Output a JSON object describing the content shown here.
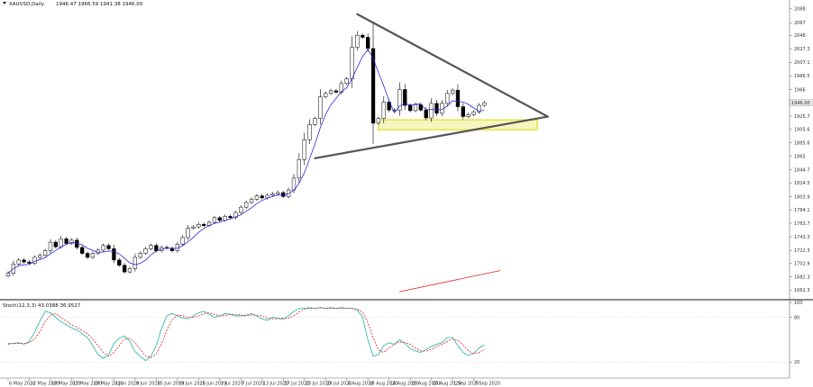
{
  "window": {
    "title": "XAUUSD,Daily",
    "ohlc": "1946.47 1966.59 1941.38 1946.00"
  },
  "colors": {
    "background": "#ffffff",
    "candle_up_fill": "#ffffff",
    "candle_down_fill": "#000000",
    "candle_outline": "#000000",
    "moving_average": "#2b2bd6",
    "trendline": "#555555",
    "support_zone": "#e6e64d",
    "red_line": "#e02020",
    "stoch_main": "#20b2aa",
    "stoch_signal": "#e02020",
    "price_tag_bg": "#e8e8e8"
  },
  "chart_data": [
    {
      "type": "candlestick",
      "symbol": "XAUUSD",
      "timeframe": "Daily",
      "current_price": 1946.0,
      "price_tag": "1946.00",
      "y_ticks": [
        1662.3,
        1682.3,
        1702.9,
        1722.3,
        1743.3,
        1763.7,
        1784.1,
        1803.9,
        1824.5,
        1844.7,
        1865.0,
        1885.6,
        1905.6,
        1925.7,
        1966.0,
        1986.5,
        2007.1,
        2027.3,
        2048.0,
        2067.0,
        2088.0
      ],
      "y_range": [
        1652,
        2096
      ],
      "x_labels": [
        {
          "bar": 0,
          "label": "6 May 2020"
        },
        {
          "bar": 4,
          "label": "12 May 2020"
        },
        {
          "bar": 8,
          "label": "18 May 2020"
        },
        {
          "bar": 12,
          "label": "22 May 2020"
        },
        {
          "bar": 16,
          "label": "28 May 2020"
        },
        {
          "bar": 20,
          "label": "3 Jun 2020"
        },
        {
          "bar": 24,
          "label": "9 Jun 2020"
        },
        {
          "bar": 28,
          "label": "15 Jun 2020"
        },
        {
          "bar": 32,
          "label": "19 Jun 2020"
        },
        {
          "bar": 36,
          "label": "25 Jun 2020"
        },
        {
          "bar": 40,
          "label": "1 Jul 2020"
        },
        {
          "bar": 44,
          "label": "7 Jul 2020"
        },
        {
          "bar": 48,
          "label": "13 Jul 2020"
        },
        {
          "bar": 52,
          "label": "17 Jul 2020"
        },
        {
          "bar": 56,
          "label": "23 Jul 2020"
        },
        {
          "bar": 60,
          "label": "29 Jul 2020"
        },
        {
          "bar": 64,
          "label": "4 Aug 2020"
        },
        {
          "bar": 68,
          "label": "10 Aug 2020"
        },
        {
          "bar": 72,
          "label": "14 Aug 2020"
        },
        {
          "bar": 76,
          "label": "20 Aug 2020"
        },
        {
          "bar": 80,
          "label": "26 Aug 2020"
        },
        {
          "bar": 84,
          "label": "1 Sep 2020"
        },
        {
          "bar": 88,
          "label": "7 Sep 2020"
        }
      ],
      "closes": [
        1688,
        1702,
        1708,
        1705,
        1703,
        1712,
        1715,
        1722,
        1735,
        1728,
        1740,
        1733,
        1738,
        1727,
        1718,
        1712,
        1718,
        1723,
        1730,
        1725,
        1708,
        1700,
        1690,
        1695,
        1712,
        1718,
        1725,
        1730,
        1722,
        1727,
        1726,
        1722,
        1732,
        1742,
        1756,
        1758,
        1762,
        1760,
        1765,
        1772,
        1768,
        1774,
        1772,
        1780,
        1788,
        1795,
        1800,
        1805,
        1802,
        1806,
        1808,
        1810,
        1804,
        1814,
        1832,
        1860,
        1890,
        1913,
        1922,
        1955,
        1960,
        1964,
        1962,
        1975,
        1982,
        2030,
        2048,
        2045,
        2028,
        1915,
        1922,
        1947,
        1935,
        1935,
        1966,
        1942,
        1934,
        1943,
        1935,
        1923,
        1945,
        1930,
        1945,
        1960,
        1965,
        1940,
        1925,
        1928,
        1932,
        1942,
        1946
      ],
      "moving_average": "5-period",
      "annotations": [
        {
          "type": "trendline",
          "note": "upper triangle line",
          "from": {
            "bar": 66,
            "price": 2080
          },
          "to": {
            "bar": 102,
            "price": 1925
          }
        },
        {
          "type": "trendline",
          "note": "lower triangle line",
          "from": {
            "bar": 58,
            "price": 1862
          },
          "to": {
            "bar": 102,
            "price": 1925
          }
        },
        {
          "type": "zone",
          "from_bar": 70,
          "to_bar": 100,
          "price_top": 1920,
          "price_bottom": 1905
        },
        {
          "type": "trendline",
          "note": "red line",
          "from": {
            "bar": 74,
            "price": 1660
          },
          "to": {
            "bar": 93,
            "price": 1692
          }
        }
      ]
    },
    {
      "type": "line",
      "indicator_label": "Stoch(12,3,3) 43.0388 36.9527",
      "y_ticks": [
        20,
        80,
        100
      ],
      "y_range": [
        0,
        100
      ],
      "series": [
        {
          "name": "main",
          "values": [
            45,
            45,
            46,
            44,
            48,
            60,
            75,
            88,
            86,
            80,
            74,
            70,
            66,
            63,
            58,
            53,
            42,
            30,
            25,
            30,
            45,
            52,
            55,
            48,
            34,
            28,
            22,
            28,
            42,
            65,
            82,
            85,
            82,
            79,
            78,
            82,
            86,
            88,
            84,
            80,
            82,
            85,
            84,
            82,
            82,
            83,
            85,
            82,
            78,
            76,
            80,
            79,
            77,
            82,
            88,
            92,
            92,
            93,
            92,
            93,
            92,
            93,
            92,
            93,
            92,
            92,
            90,
            80,
            50,
            28,
            30,
            42,
            46,
            44,
            50,
            45,
            38,
            35,
            33,
            37,
            41,
            44,
            46,
            53,
            53,
            42,
            33,
            29,
            32,
            39,
            43
          ]
        },
        {
          "name": "signal",
          "values": [
            44,
            45,
            45,
            45,
            46,
            51,
            61,
            74,
            83,
            85,
            80,
            75,
            70,
            67,
            62,
            58,
            51,
            42,
            33,
            28,
            33,
            42,
            51,
            52,
            46,
            37,
            28,
            26,
            31,
            45,
            63,
            77,
            83,
            82,
            80,
            80,
            82,
            85,
            86,
            84,
            82,
            82,
            84,
            84,
            83,
            82,
            83,
            83,
            82,
            79,
            78,
            78,
            79,
            79,
            82,
            87,
            91,
            92,
            92,
            93,
            92,
            92,
            92,
            92,
            92,
            92,
            91,
            87,
            73,
            53,
            36,
            33,
            39,
            44,
            47,
            46,
            44,
            39,
            35,
            35,
            37,
            41,
            44,
            48,
            51,
            49,
            43,
            35,
            31,
            33,
            37
          ]
        }
      ]
    }
  ]
}
